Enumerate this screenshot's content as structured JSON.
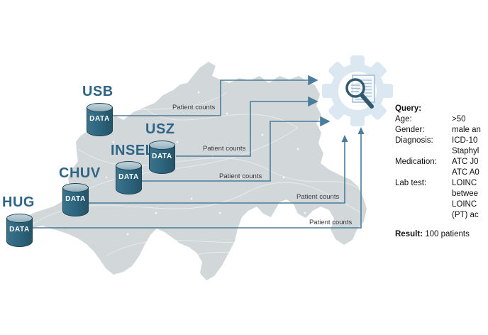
{
  "diagram": {
    "sites": [
      {
        "id": "usb",
        "name": "USB",
        "db_label": "DATA"
      },
      {
        "id": "usz",
        "name": "USZ",
        "db_label": "DATA"
      },
      {
        "id": "insel",
        "name": "INSEL",
        "db_label": "DATA"
      },
      {
        "id": "chuv",
        "name": "CHUV",
        "db_label": "DATA"
      },
      {
        "id": "hug",
        "name": "HUG",
        "db_label": "DATA"
      }
    ],
    "connections": [
      {
        "from": "USB",
        "label": "Patient counts"
      },
      {
        "from": "USZ",
        "label": "Patient counts"
      },
      {
        "from": "INSEL",
        "label": "Patient counts"
      },
      {
        "from": "CHUV",
        "label": "Patient counts"
      },
      {
        "from": "HUG",
        "label": "Patient counts"
      }
    ],
    "hub": {
      "icon": "gear-with-magnifier-and-document"
    }
  },
  "query_panel": {
    "title": "Query:",
    "rows": [
      {
        "label": "Age:",
        "value": ">50"
      },
      {
        "label": "Gender:",
        "value": "male an"
      },
      {
        "label": "Diagnosis:",
        "value": "ICD-10"
      },
      {
        "label": "",
        "value": "Staphyl"
      },
      {
        "label": "Medication:",
        "value": "ATC J0"
      },
      {
        "label": "",
        "value": "ATC A0"
      },
      {
        "label": "Lab test:",
        "value": "LOINC"
      },
      {
        "label": "",
        "value": "betwee"
      },
      {
        "label": "",
        "value": "LOINC"
      },
      {
        "label": "",
        "value": "(PT) ac"
      }
    ],
    "result_label": "Result:",
    "result_value": "100 patients"
  },
  "colors": {
    "map_fill": "#d2d7da",
    "arrow": "#4a7c9b",
    "cylinder_body": "#2e6680",
    "cylinder_top": "#a7bfc9",
    "site_label": "#2e6486",
    "gear": "#dce8f1",
    "magnifier": "#33596e",
    "flow_label_text": "#3a3a3a"
  }
}
